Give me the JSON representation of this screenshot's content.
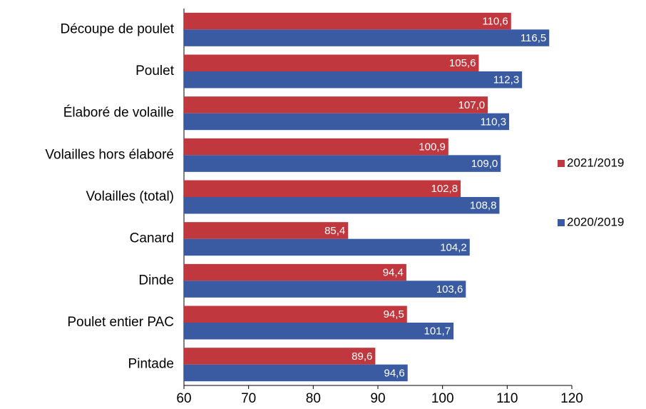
{
  "chart_data": {
    "type": "hbar",
    "categories": [
      "Découpe de poulet",
      "Poulet",
      "Élaboré de volaille",
      "Volailles hors élaboré",
      "Volailles (total)",
      "Canard",
      "Dinde",
      "Poulet entier PAC",
      "Pintade"
    ],
    "series": [
      {
        "name": "2021/2019",
        "color": "#c0383e",
        "values": [
          110.6,
          105.6,
          107.0,
          100.9,
          102.8,
          85.4,
          94.4,
          94.5,
          89.6
        ],
        "value_labels": [
          "110,6",
          "105,6",
          "107,0",
          "100,9",
          "102,8",
          "85,4",
          "94,4",
          "94,5",
          "89,6"
        ]
      },
      {
        "name": "2020/2019",
        "color": "#3a5ba2",
        "values": [
          116.5,
          112.3,
          110.3,
          109.0,
          108.8,
          104.2,
          103.6,
          101.7,
          94.6
        ],
        "value_labels": [
          "116,5",
          "112,3",
          "110,3",
          "109,0",
          "108,8",
          "104,2",
          "103,6",
          "101,7",
          "94,6"
        ]
      }
    ],
    "xlim": [
      60,
      120
    ],
    "xticks": [
      60,
      70,
      80,
      90,
      100,
      110,
      120
    ],
    "grid": false,
    "legend": "right"
  }
}
